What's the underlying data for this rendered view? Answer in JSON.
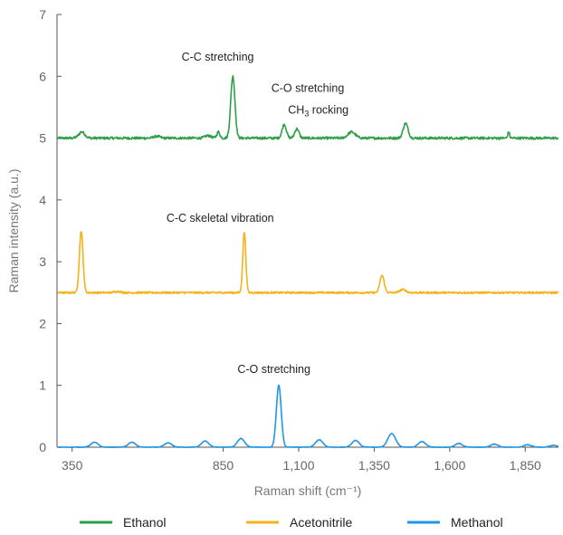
{
  "chart_data": {
    "type": "line",
    "title": "",
    "xlabel": "Raman shift (cm⁻¹)",
    "ylabel": "Raman intensity (a.u.)",
    "xlim": [
      300,
      1960
    ],
    "ylim": [
      0,
      7
    ],
    "x_ticks": [
      {
        "value": 350,
        "label": "350"
      },
      {
        "value": 850,
        "label": "850"
      },
      {
        "value": 1100,
        "label": "1,100"
      },
      {
        "value": 1350,
        "label": "1,350"
      },
      {
        "value": 1600,
        "label": "1,600"
      },
      {
        "value": 1850,
        "label": "1,850"
      }
    ],
    "y_ticks": [
      {
        "value": 0,
        "label": "0"
      },
      {
        "value": 1,
        "label": "1"
      },
      {
        "value": 2,
        "label": "2"
      },
      {
        "value": 3,
        "label": "3"
      },
      {
        "value": 4,
        "label": "4"
      },
      {
        "value": 5,
        "label": "5"
      },
      {
        "value": 6,
        "label": "6"
      },
      {
        "value": 7,
        "label": "7"
      }
    ],
    "grid": false,
    "legend_position": "bottom",
    "series": [
      {
        "name": "Ethanol",
        "color": "#2e9e48",
        "baseline": 5.0,
        "noise": 0.02,
        "peaks": [
          {
            "x": 382,
            "h": 0.1,
            "w": 10
          },
          {
            "x": 630,
            "h": 0.03,
            "w": 10
          },
          {
            "x": 800,
            "h": 0.04,
            "w": 10
          },
          {
            "x": 834,
            "h": 0.1,
            "w": 5
          },
          {
            "x": 882,
            "h": 1.0,
            "w": 7
          },
          {
            "x": 1052,
            "h": 0.22,
            "w": 7
          },
          {
            "x": 1094,
            "h": 0.15,
            "w": 7
          },
          {
            "x": 1275,
            "h": 0.1,
            "w": 12
          },
          {
            "x": 1454,
            "h": 0.24,
            "w": 8
          },
          {
            "x": 1795,
            "h": 0.1,
            "w": 3
          }
        ]
      },
      {
        "name": "Acetonitrile",
        "color": "#f5b21a",
        "baseline": 2.5,
        "noise": 0.015,
        "peaks": [
          {
            "x": 380,
            "h": 1.0,
            "w": 6
          },
          {
            "x": 500,
            "h": 0.02,
            "w": 10
          },
          {
            "x": 920,
            "h": 0.98,
            "w": 5
          },
          {
            "x": 1376,
            "h": 0.28,
            "w": 7
          },
          {
            "x": 1445,
            "h": 0.05,
            "w": 10
          }
        ]
      },
      {
        "name": "Methanol",
        "color": "#2196e6",
        "baseline": 0.0,
        "noise": 0.004,
        "peaks": [
          {
            "x": 424,
            "h": 0.08,
            "w": 12
          },
          {
            "x": 548,
            "h": 0.08,
            "w": 12
          },
          {
            "x": 668,
            "h": 0.07,
            "w": 12
          },
          {
            "x": 790,
            "h": 0.1,
            "w": 12
          },
          {
            "x": 909,
            "h": 0.14,
            "w": 12
          },
          {
            "x": 1034,
            "h": 1.0,
            "w": 8
          },
          {
            "x": 1168,
            "h": 0.12,
            "w": 12
          },
          {
            "x": 1288,
            "h": 0.11,
            "w": 12
          },
          {
            "x": 1408,
            "h": 0.22,
            "w": 13
          },
          {
            "x": 1508,
            "h": 0.09,
            "w": 12
          },
          {
            "x": 1630,
            "h": 0.06,
            "w": 12
          },
          {
            "x": 1748,
            "h": 0.05,
            "w": 12
          },
          {
            "x": 1858,
            "h": 0.04,
            "w": 12
          },
          {
            "x": 1944,
            "h": 0.03,
            "w": 12
          }
        ]
      }
    ],
    "annotations": [
      {
        "text": "C-C stretching",
        "x": 832,
        "y": 6.25
      },
      {
        "text": "C-O stretching",
        "x": 1130,
        "y": 5.75
      },
      {
        "text": "CH",
        "sub": "3",
        "suffix": " rocking",
        "x": 1165,
        "y": 5.4
      },
      {
        "text": "C-C skeletal vibration",
        "x": 840,
        "y": 3.65
      },
      {
        "text": "C-O stretching",
        "x": 1018,
        "y": 1.2
      }
    ]
  }
}
